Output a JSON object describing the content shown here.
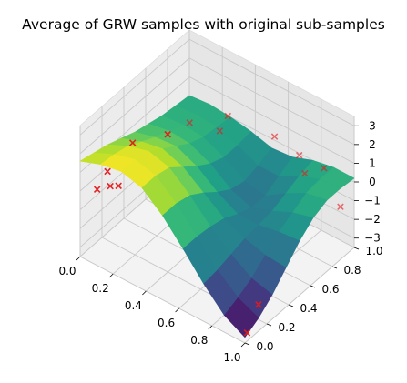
{
  "chart_data": {
    "type": "surface3d",
    "title": "Average of GRW samples with original sub-samples",
    "xlabel": "",
    "ylabel": "",
    "zlabel": "",
    "xlim": [
      0,
      1
    ],
    "ylim": [
      0,
      1
    ],
    "zlim": [
      -3.5,
      3.5
    ],
    "x_ticks": [
      "0.0",
      "0.2",
      "0.4",
      "0.6",
      "0.8",
      "1.0"
    ],
    "y_ticks": [
      "0.0",
      "0.2",
      "0.4",
      "0.6",
      "0.8",
      "1.0"
    ],
    "z_ticks": [
      "−3",
      "−2",
      "−1",
      "0",
      "1",
      "2",
      "3"
    ],
    "x_tick_values": [
      0,
      0.2,
      0.4,
      0.6,
      0.8,
      1.0
    ],
    "y_tick_values": [
      0,
      0.2,
      0.4,
      0.6,
      0.8,
      1.0
    ],
    "z_tick_values": [
      -3,
      -2,
      -1,
      0,
      1,
      2,
      3
    ],
    "grid": true,
    "colormap": "viridis",
    "surface": {
      "x": [
        0,
        0.125,
        0.25,
        0.375,
        0.5,
        0.625,
        0.75,
        0.875,
        1.0
      ],
      "y": [
        0,
        0.125,
        0.25,
        0.375,
        0.5,
        0.625,
        0.75,
        0.875,
        1.0
      ],
      "z_rows_by_y": [
        [
          1.6,
          2.0,
          2.2,
          1.9,
          1.0,
          -0.2,
          -1.5,
          -2.6,
          -3.2
        ],
        [
          1.4,
          1.9,
          2.2,
          1.9,
          1.0,
          -0.2,
          -1.4,
          -2.3,
          -2.8
        ],
        [
          1.2,
          1.7,
          2.0,
          1.7,
          0.8,
          -0.3,
          -1.2,
          -1.9,
          -2.2
        ],
        [
          0.9,
          1.3,
          1.5,
          1.1,
          0.3,
          -0.5,
          -1.0,
          -1.3,
          -1.4
        ],
        [
          0.6,
          0.9,
          1.0,
          0.5,
          -0.3,
          -0.9,
          -0.9,
          -0.7,
          -0.6
        ],
        [
          0.4,
          0.6,
          0.5,
          0.0,
          -0.8,
          -1.2,
          -0.8,
          -0.3,
          0.0
        ],
        [
          0.2,
          0.3,
          0.2,
          -0.3,
          -1.0,
          -1.2,
          -0.5,
          0.1,
          0.3
        ],
        [
          0.1,
          0.2,
          0.1,
          -0.3,
          -0.8,
          -0.8,
          -0.2,
          0.2,
          0.3
        ],
        [
          0.0,
          0.1,
          0.0,
          -0.2,
          -0.5,
          -0.4,
          0.0,
          0.2,
          0.2
        ]
      ]
    },
    "sub_samples": {
      "marker": "x",
      "color": "#e41a1c",
      "points": [
        {
          "x": 0.1,
          "y": 0.1,
          "z": 1.0
        },
        {
          "x": 0.12,
          "y": 0.3,
          "z": 1.6
        },
        {
          "x": 0.09,
          "y": 0.02,
          "z": 0.4
        },
        {
          "x": 0.15,
          "y": 0.05,
          "z": 0.7
        },
        {
          "x": 0.18,
          "y": 0.08,
          "z": 0.7
        },
        {
          "x": 0.2,
          "y": 0.5,
          "z": 1.4
        },
        {
          "x": 0.2,
          "y": 0.7,
          "z": 1.0
        },
        {
          "x": 0.35,
          "y": 0.75,
          "z": 1.0
        },
        {
          "x": 0.3,
          "y": 0.9,
          "z": 0.8
        },
        {
          "x": 0.55,
          "y": 0.95,
          "z": 0.6
        },
        {
          "x": 0.7,
          "y": 0.95,
          "z": 0.3
        },
        {
          "x": 0.8,
          "y": 0.85,
          "z": 0.3
        },
        {
          "x": 0.85,
          "y": 0.95,
          "z": 0.3
        },
        {
          "x": 0.95,
          "y": 0.95,
          "z": -1.3
        },
        {
          "x": 0.95,
          "y": 0.2,
          "z": -2.7
        },
        {
          "x": 0.98,
          "y": 0.05,
          "z": -3.3
        }
      ]
    }
  }
}
